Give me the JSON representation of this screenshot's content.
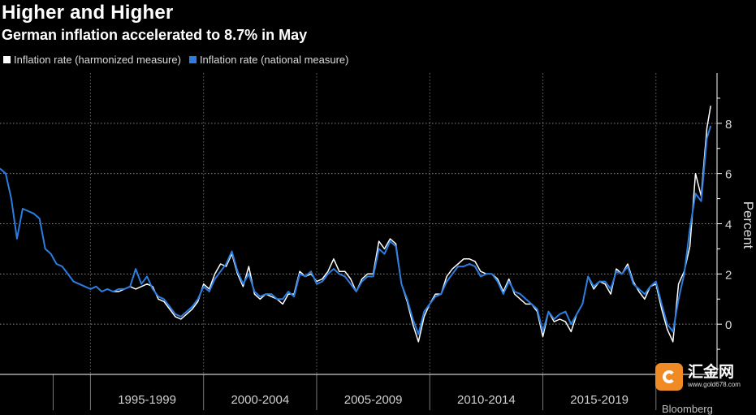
{
  "header": {
    "title": "Higher and Higher",
    "subtitle": "German inflation accelerated to 8.7% in May"
  },
  "watermark": {
    "name": "汇金网",
    "url": "www.gold678.com"
  },
  "source": "Bloomberg",
  "colors": {
    "harmonized": "#ffffff",
    "national": "#2b7de0",
    "grid": "#7a7a7a",
    "axis": "#ffffff",
    "watermark": "#f08a24"
  },
  "chart_data": {
    "type": "line",
    "title": "Higher and Higher",
    "subtitle": "German inflation accelerated to 8.7% in May",
    "ylabel": "Percent",
    "xlabel": "",
    "ylim": [
      -2,
      10
    ],
    "yticks": [
      0,
      2,
      4,
      6,
      8
    ],
    "xlim": [
      1991.0,
      2022.7
    ],
    "period_labels": [
      "1995-1999",
      "2000-2004",
      "2005-2009",
      "2010-2014",
      "2015-2019"
    ],
    "period_bounds": [
      1995,
      2000,
      2005,
      2010,
      2015,
      2020
    ],
    "legend": [
      "Inflation rate (harmonized measure)",
      "Inflation rate (national measure)"
    ],
    "series": [
      {
        "name": "Inflation rate (harmonized measure)",
        "color": "#ffffff",
        "harmonized_start": 1996.0,
        "points": [
          [
            1996.0,
            1.3
          ],
          [
            1996.25,
            1.3
          ],
          [
            1996.5,
            1.4
          ],
          [
            1996.75,
            1.5
          ],
          [
            1997.0,
            1.4
          ],
          [
            1997.25,
            1.5
          ],
          [
            1997.5,
            1.6
          ],
          [
            1997.75,
            1.5
          ],
          [
            1998.0,
            1.0
          ],
          [
            1998.25,
            0.9
          ],
          [
            1998.5,
            0.6
          ],
          [
            1998.75,
            0.3
          ],
          [
            1999.0,
            0.2
          ],
          [
            1999.25,
            0.4
          ],
          [
            1999.5,
            0.6
          ],
          [
            1999.75,
            0.9
          ],
          [
            2000.0,
            1.6
          ],
          [
            2000.25,
            1.4
          ],
          [
            2000.5,
            2.0
          ],
          [
            2000.75,
            2.4
          ],
          [
            2001.0,
            2.3
          ],
          [
            2001.25,
            2.8
          ],
          [
            2001.5,
            2.0
          ],
          [
            2001.75,
            1.5
          ],
          [
            2002.0,
            2.3
          ],
          [
            2002.25,
            1.2
          ],
          [
            2002.5,
            1.0
          ],
          [
            2002.75,
            1.2
          ],
          [
            2003.0,
            1.1
          ],
          [
            2003.25,
            1.0
          ],
          [
            2003.5,
            0.8
          ],
          [
            2003.75,
            1.2
          ],
          [
            2004.0,
            1.2
          ],
          [
            2004.25,
            2.1
          ],
          [
            2004.5,
            1.9
          ],
          [
            2004.75,
            2.0
          ],
          [
            2005.0,
            1.7
          ],
          [
            2005.25,
            1.8
          ],
          [
            2005.5,
            2.1
          ],
          [
            2005.75,
            2.6
          ],
          [
            2006.0,
            2.1
          ],
          [
            2006.25,
            2.1
          ],
          [
            2006.5,
            1.8
          ],
          [
            2006.75,
            1.3
          ],
          [
            2007.0,
            1.8
          ],
          [
            2007.25,
            2.0
          ],
          [
            2007.5,
            2.0
          ],
          [
            2007.75,
            3.3
          ],
          [
            2008.0,
            3.0
          ],
          [
            2008.25,
            3.4
          ],
          [
            2008.5,
            3.2
          ],
          [
            2008.75,
            1.6
          ],
          [
            2009.0,
            0.9
          ],
          [
            2009.25,
            0.0
          ],
          [
            2009.5,
            -0.7
          ],
          [
            2009.75,
            0.3
          ],
          [
            2010.0,
            0.8
          ],
          [
            2010.25,
            1.2
          ],
          [
            2010.5,
            1.2
          ],
          [
            2010.75,
            1.9
          ],
          [
            2011.0,
            2.2
          ],
          [
            2011.25,
            2.4
          ],
          [
            2011.5,
            2.6
          ],
          [
            2011.75,
            2.6
          ],
          [
            2012.0,
            2.5
          ],
          [
            2012.25,
            2.1
          ],
          [
            2012.5,
            2.0
          ],
          [
            2012.75,
            2.0
          ],
          [
            2013.0,
            1.8
          ],
          [
            2013.25,
            1.3
          ],
          [
            2013.5,
            1.8
          ],
          [
            2013.75,
            1.2
          ],
          [
            2014.0,
            1.0
          ],
          [
            2014.25,
            0.8
          ],
          [
            2014.5,
            0.8
          ],
          [
            2014.75,
            0.5
          ],
          [
            2015.0,
            -0.5
          ],
          [
            2015.25,
            0.5
          ],
          [
            2015.5,
            0.1
          ],
          [
            2015.75,
            0.2
          ],
          [
            2016.0,
            0.1
          ],
          [
            2016.25,
            -0.3
          ],
          [
            2016.5,
            0.4
          ],
          [
            2016.75,
            0.8
          ],
          [
            2017.0,
            1.9
          ],
          [
            2017.25,
            1.4
          ],
          [
            2017.5,
            1.7
          ],
          [
            2017.75,
            1.6
          ],
          [
            2018.0,
            1.2
          ],
          [
            2018.25,
            2.2
          ],
          [
            2018.5,
            2.0
          ],
          [
            2018.75,
            2.4
          ],
          [
            2019.0,
            1.7
          ],
          [
            2019.25,
            1.3
          ],
          [
            2019.5,
            1.0
          ],
          [
            2019.75,
            1.5
          ],
          [
            2020.0,
            1.6
          ],
          [
            2020.25,
            0.6
          ],
          [
            2020.5,
            -0.2
          ],
          [
            2020.75,
            -0.7
          ],
          [
            2021.0,
            1.6
          ],
          [
            2021.25,
            2.1
          ],
          [
            2021.5,
            3.1
          ],
          [
            2021.75,
            6.0
          ],
          [
            2022.0,
            5.1
          ],
          [
            2022.25,
            7.8
          ],
          [
            2022.42,
            8.7
          ]
        ]
      },
      {
        "name": "Inflation rate (national measure)",
        "color": "#2b7de0",
        "points": [
          [
            1991.0,
            6.2
          ],
          [
            1991.25,
            6.0
          ],
          [
            1991.5,
            5.0
          ],
          [
            1991.75,
            3.4
          ],
          [
            1992.0,
            4.6
          ],
          [
            1992.25,
            4.5
          ],
          [
            1992.5,
            4.4
          ],
          [
            1992.75,
            4.2
          ],
          [
            1993.0,
            3.0
          ],
          [
            1993.25,
            2.8
          ],
          [
            1993.5,
            2.4
          ],
          [
            1993.75,
            2.3
          ],
          [
            1994.0,
            2.0
          ],
          [
            1994.25,
            1.7
          ],
          [
            1994.5,
            1.6
          ],
          [
            1994.75,
            1.5
          ],
          [
            1995.0,
            1.4
          ],
          [
            1995.25,
            1.5
          ],
          [
            1995.5,
            1.3
          ],
          [
            1995.75,
            1.4
          ],
          [
            1996.0,
            1.3
          ],
          [
            1996.25,
            1.4
          ],
          [
            1996.5,
            1.4
          ],
          [
            1996.75,
            1.5
          ],
          [
            1997.0,
            2.2
          ],
          [
            1997.25,
            1.6
          ],
          [
            1997.5,
            1.9
          ],
          [
            1997.75,
            1.4
          ],
          [
            1998.0,
            1.1
          ],
          [
            1998.25,
            1.0
          ],
          [
            1998.5,
            0.7
          ],
          [
            1998.75,
            0.4
          ],
          [
            1999.0,
            0.3
          ],
          [
            1999.25,
            0.5
          ],
          [
            1999.5,
            0.7
          ],
          [
            1999.75,
            1.0
          ],
          [
            2000.0,
            1.5
          ],
          [
            2000.25,
            1.3
          ],
          [
            2000.5,
            1.8
          ],
          [
            2000.75,
            2.1
          ],
          [
            2001.0,
            2.4
          ],
          [
            2001.25,
            2.9
          ],
          [
            2001.5,
            2.1
          ],
          [
            2001.75,
            1.6
          ],
          [
            2002.0,
            2.0
          ],
          [
            2002.25,
            1.3
          ],
          [
            2002.5,
            1.1
          ],
          [
            2002.75,
            1.2
          ],
          [
            2003.0,
            1.2
          ],
          [
            2003.25,
            1.0
          ],
          [
            2003.5,
            1.0
          ],
          [
            2003.75,
            1.3
          ],
          [
            2004.0,
            1.1
          ],
          [
            2004.25,
            2.0
          ],
          [
            2004.5,
            1.9
          ],
          [
            2004.75,
            2.1
          ],
          [
            2005.0,
            1.6
          ],
          [
            2005.25,
            1.7
          ],
          [
            2005.5,
            2.0
          ],
          [
            2005.75,
            2.2
          ],
          [
            2006.0,
            2.0
          ],
          [
            2006.25,
            1.9
          ],
          [
            2006.5,
            1.6
          ],
          [
            2006.75,
            1.3
          ],
          [
            2007.0,
            1.7
          ],
          [
            2007.25,
            1.9
          ],
          [
            2007.5,
            1.9
          ],
          [
            2007.75,
            3.0
          ],
          [
            2008.0,
            2.8
          ],
          [
            2008.25,
            3.3
          ],
          [
            2008.5,
            3.1
          ],
          [
            2008.75,
            1.6
          ],
          [
            2009.0,
            1.0
          ],
          [
            2009.25,
            0.2
          ],
          [
            2009.5,
            -0.4
          ],
          [
            2009.75,
            0.5
          ],
          [
            2010.0,
            0.8
          ],
          [
            2010.25,
            1.1
          ],
          [
            2010.5,
            1.2
          ],
          [
            2010.75,
            1.7
          ],
          [
            2011.0,
            2.0
          ],
          [
            2011.25,
            2.3
          ],
          [
            2011.5,
            2.3
          ],
          [
            2011.75,
            2.4
          ],
          [
            2012.0,
            2.3
          ],
          [
            2012.25,
            1.9
          ],
          [
            2012.5,
            2.0
          ],
          [
            2012.75,
            2.0
          ],
          [
            2013.0,
            1.7
          ],
          [
            2013.25,
            1.2
          ],
          [
            2013.5,
            1.7
          ],
          [
            2013.75,
            1.3
          ],
          [
            2014.0,
            1.2
          ],
          [
            2014.25,
            1.0
          ],
          [
            2014.5,
            0.8
          ],
          [
            2014.75,
            0.6
          ],
          [
            2015.0,
            -0.3
          ],
          [
            2015.25,
            0.5
          ],
          [
            2015.5,
            0.2
          ],
          [
            2015.75,
            0.4
          ],
          [
            2016.0,
            0.5
          ],
          [
            2016.25,
            0.0
          ],
          [
            2016.5,
            0.4
          ],
          [
            2016.75,
            0.8
          ],
          [
            2017.0,
            1.9
          ],
          [
            2017.25,
            1.5
          ],
          [
            2017.5,
            1.7
          ],
          [
            2017.75,
            1.7
          ],
          [
            2018.0,
            1.4
          ],
          [
            2018.25,
            2.1
          ],
          [
            2018.5,
            2.0
          ],
          [
            2018.75,
            2.3
          ],
          [
            2019.0,
            1.6
          ],
          [
            2019.25,
            1.4
          ],
          [
            2019.5,
            1.2
          ],
          [
            2019.75,
            1.5
          ],
          [
            2020.0,
            1.7
          ],
          [
            2020.25,
            0.8
          ],
          [
            2020.5,
            0.0
          ],
          [
            2020.75,
            -0.3
          ],
          [
            2021.0,
            1.0
          ],
          [
            2021.25,
            2.0
          ],
          [
            2021.5,
            3.8
          ],
          [
            2021.75,
            5.2
          ],
          [
            2022.0,
            4.9
          ],
          [
            2022.25,
            7.4
          ],
          [
            2022.42,
            7.9
          ]
        ]
      }
    ]
  }
}
